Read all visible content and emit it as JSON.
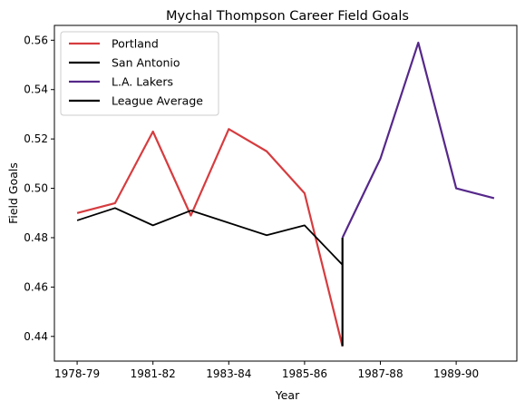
{
  "chart_data": {
    "type": "line",
    "title": "Mychal Thompson Career Field Goals",
    "xlabel": "Year",
    "ylabel": "Field Goals",
    "x_ticks": [
      "1978-79",
      "1981-82",
      "1983-84",
      "1985-86",
      "1987-88",
      "1989-90"
    ],
    "x_tick_positions": [
      0,
      2,
      4,
      6,
      8,
      10
    ],
    "y_ticks": [
      0.44,
      0.46,
      0.48,
      0.5,
      0.52,
      0.54,
      0.56
    ],
    "xlim": [
      -0.6,
      11.6
    ],
    "ylim": [
      0.43,
      0.566
    ],
    "legend_position": "top-left",
    "grid": false,
    "series": [
      {
        "name": "Portland",
        "color": "#d63c3f",
        "x": [
          0,
          1,
          2,
          3,
          4,
          5,
          6,
          7
        ],
        "y": [
          0.49,
          0.494,
          0.523,
          0.489,
          0.524,
          0.515,
          0.498,
          0.436
        ]
      },
      {
        "name": "San Antonio",
        "color": "#000000",
        "x": [
          7,
          7
        ],
        "y": [
          0.436,
          0.48
        ]
      },
      {
        "name": "L.A. Lakers",
        "color": "#56288a",
        "x": [
          7,
          8,
          9,
          10,
          11
        ],
        "y": [
          0.48,
          0.512,
          0.559,
          0.5,
          0.496
        ]
      },
      {
        "name": "League Average",
        "color": "#000000",
        "x": [
          0,
          1,
          2,
          3,
          4,
          5,
          6,
          7
        ],
        "y": [
          0.487,
          0.492,
          0.485,
          0.491,
          0.486,
          0.481,
          0.485,
          0.469
        ]
      }
    ]
  }
}
